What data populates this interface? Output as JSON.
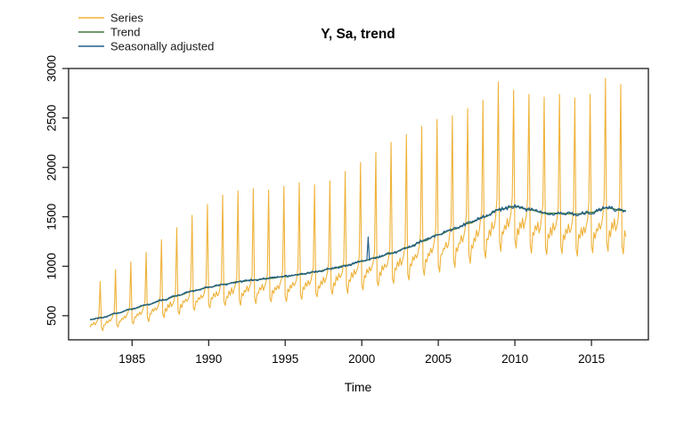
{
  "title": "Y, Sa, trend",
  "xlabel": "Time",
  "legend": [
    {
      "label": "Series",
      "color": "#EFB239"
    },
    {
      "label": "Trend",
      "color": "#41793B"
    },
    {
      "label": "Seasonally adjusted",
      "color": "#235F8C"
    }
  ],
  "colors": {
    "axis": "#1a1a1a",
    "box": "#2a2a2a",
    "background": "#ffffff"
  },
  "chart_data": {
    "type": "line",
    "title": "Y, Sa, trend",
    "xlabel": "Time",
    "ylabel": "",
    "grid": false,
    "legend_position": "top-left",
    "x_ticks": [
      1985,
      1990,
      1995,
      2000,
      2005,
      2010,
      2015
    ],
    "y_ticks": [
      500,
      1000,
      1500,
      2000,
      2500,
      3000
    ],
    "xlim": [
      1980.85,
      2018.72
    ],
    "ylim": [
      256,
      3000
    ],
    "frequency": 12,
    "start": 1982.25,
    "end": 2017.25,
    "series": [
      {
        "name": "Series",
        "color": "#EFB239",
        "width": 1.1,
        "construction": "trend_anchors interpolated x seasonal_factors; December values from dec_peaks; small noise"
      },
      {
        "name": "Trend",
        "color": "#41793B",
        "width": 1.5,
        "construction": "smooth interpolation of trend_anchors"
      },
      {
        "name": "Seasonally adjusted",
        "color": "#235F8C",
        "width": 1.2,
        "construction": "trend with small noise plus sa_anomalies spike in mid-2000"
      }
    ],
    "trend_anchors": {
      "1982": 455,
      "1983": 480,
      "1984": 525,
      "1985": 568,
      "1986": 612,
      "1987": 658,
      "1988": 705,
      "1989": 752,
      "1990": 788,
      "1991": 818,
      "1992": 845,
      "1993": 862,
      "1994": 878,
      "1995": 897,
      "1996": 918,
      "1997": 945,
      "1998": 975,
      "1999": 1010,
      "2000": 1050,
      "2001": 1090,
      "2002": 1135,
      "2003": 1190,
      "2004": 1255,
      "2005": 1320,
      "2006": 1375,
      "2007": 1435,
      "2008": 1500,
      "2009": 1575,
      "2010": 1605,
      "2011": 1570,
      "2012": 1535,
      "2013": 1535,
      "2014": 1528,
      "2015": 1545,
      "2016": 1590,
      "2017": 1565,
      "2018": 1535
    },
    "dec_peaks": {
      "1982": 845,
      "1983": 968,
      "1984": 1042,
      "1985": 1140,
      "1986": 1268,
      "1987": 1390,
      "1988": 1515,
      "1989": 1625,
      "1990": 1720,
      "1991": 1762,
      "1992": 1785,
      "1993": 1770,
      "1994": 1810,
      "1995": 1845,
      "1996": 1824,
      "1997": 1863,
      "1998": 1959,
      "1999": 2050,
      "2000": 2154,
      "2001": 2254,
      "2002": 2332,
      "2003": 2413,
      "2004": 2485,
      "2005": 2521,
      "2006": 2594,
      "2007": 2680,
      "2008": 2865,
      "2009": 2783,
      "2010": 2738,
      "2011": 2711,
      "2012": 2738,
      "2013": 2702,
      "2014": 2738,
      "2015": 2901,
      "2016": 2838
    },
    "seasonal_factors": [
      0.78,
      0.725,
      0.855,
      0.83,
      0.9,
      0.865,
      0.925,
      0.875,
      0.91,
      0.965,
      1.06,
      1.83
    ],
    "sa_anomalies": [
      {
        "year": 2000,
        "month": 6,
        "value": 1295
      },
      {
        "year": 2000,
        "month": 7,
        "value": 1060
      }
    ],
    "noise": {
      "seed": 42,
      "series_pct": 0.018,
      "sa_pct": 0.013
    }
  }
}
